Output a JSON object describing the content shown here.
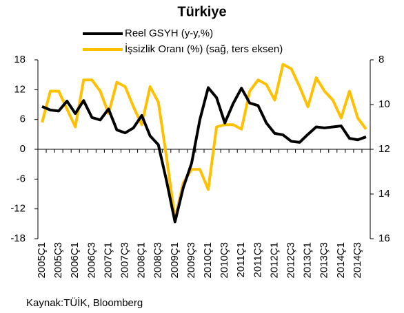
{
  "chart_data": {
    "type": "line",
    "title": "Türkiye",
    "source": "Kaynak:TÜİK, Bloomberg",
    "categories": [
      "2005Ç1",
      null,
      "2005Ç3",
      null,
      "2006Ç1",
      null,
      "2006Ç3",
      null,
      "2007Ç1",
      null,
      "2007Ç3",
      null,
      "2008Ç1",
      null,
      "2008Ç3",
      null,
      "2009Ç1",
      null,
      "2009Ç3",
      null,
      "2010Ç1",
      null,
      "2010Ç3",
      null,
      "2011Ç1",
      null,
      "2011Ç3",
      null,
      "2012Ç1",
      null,
      "2012Ç3",
      null,
      "2013Ç1",
      null,
      "2013Ç3",
      null,
      "2014Ç1",
      null,
      "2014Ç3",
      null
    ],
    "series": [
      {
        "name": "Reel GSYH (y-y,%)",
        "color": "#000000",
        "values": [
          8.6,
          7.9,
          7.7,
          9.7,
          7.2,
          9.8,
          6.4,
          5.9,
          8.1,
          3.9,
          3.3,
          4.3,
          6.8,
          2.7,
          0.9,
          -6.5,
          -14.6,
          -7.7,
          -2.8,
          6.0,
          12.4,
          10.4,
          5.3,
          9.2,
          12.3,
          9.3,
          8.8,
          5.3,
          3.2,
          2.9,
          1.6,
          1.4,
          3.0,
          4.5,
          4.3,
          4.5,
          4.7,
          2.2,
          1.9,
          2.5
        ]
      },
      {
        "name": "İşsizlik Oranı (%) (sağ, ters eksen)",
        "color": "#ffc000",
        "axis": "y2",
        "values": [
          10.8,
          9.4,
          9.4,
          10.2,
          11.0,
          8.9,
          8.9,
          9.4,
          10.4,
          9.0,
          9.2,
          10.1,
          10.9,
          9.2,
          9.9,
          12.4,
          15.1,
          13.5,
          12.9,
          12.9,
          13.8,
          11.0,
          10.9,
          10.9,
          11.1,
          9.4,
          8.9,
          9.1,
          9.8,
          8.2,
          8.4,
          9.2,
          10.1,
          8.8,
          9.4,
          9.8,
          10.6,
          9.4,
          10.6,
          11.1
        ]
      }
    ],
    "ylim": [
      -18,
      18
    ],
    "yticks": [
      -18,
      -12,
      -6,
      0,
      6,
      12,
      18
    ],
    "y2lim": [
      16,
      8
    ],
    "y2ticks": [
      8,
      10,
      12,
      14,
      16
    ],
    "legend": "top"
  }
}
